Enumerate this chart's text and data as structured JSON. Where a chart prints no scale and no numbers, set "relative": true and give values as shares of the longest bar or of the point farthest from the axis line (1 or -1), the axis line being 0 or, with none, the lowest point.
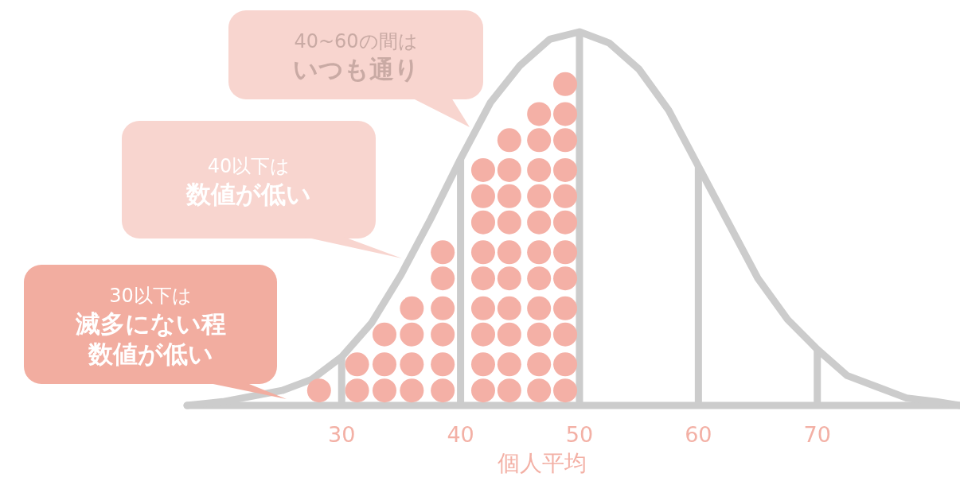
{
  "chart_data": {
    "type": "scatter",
    "relative": true,
    "xlim": [
      17,
      82
    ],
    "xticks": [
      30,
      40,
      50,
      60,
      70
    ],
    "xlabel": "個人平均",
    "series": [
      {
        "marker": "circle",
        "color": "#f4b0a6",
        "x": [
          28.1,
          31.3,
          31.3,
          33.6,
          33.6,
          33.6,
          35.9,
          35.9,
          35.9,
          35.9,
          38.5,
          38.5,
          38.5,
          38.5,
          38.5,
          38.5,
          41.9,
          41.9,
          41.9,
          41.9,
          41.9,
          41.9,
          41.9,
          41.9,
          41.9,
          44.1,
          44.1,
          44.1,
          44.1,
          44.1,
          44.1,
          44.1,
          44.1,
          44.1,
          44.1,
          46.6,
          46.6,
          46.6,
          46.6,
          46.6,
          46.6,
          46.6,
          46.6,
          46.6,
          46.6,
          46.6,
          48.8,
          48.8,
          48.8,
          48.8,
          48.8,
          48.8,
          48.8,
          48.8,
          48.8,
          48.8,
          48.8,
          48.8
        ],
        "values": [
          0.04,
          0.04,
          0.11,
          0.04,
          0.11,
          0.19,
          0.04,
          0.11,
          0.19,
          0.26,
          0.04,
          0.11,
          0.19,
          0.26,
          0.34,
          0.41,
          0.04,
          0.11,
          0.19,
          0.26,
          0.34,
          0.41,
          0.49,
          0.56,
          0.63,
          0.04,
          0.11,
          0.19,
          0.26,
          0.34,
          0.41,
          0.49,
          0.56,
          0.63,
          0.71,
          0.04,
          0.11,
          0.19,
          0.26,
          0.34,
          0.41,
          0.49,
          0.56,
          0.63,
          0.71,
          0.78,
          0.04,
          0.11,
          0.19,
          0.26,
          0.34,
          0.41,
          0.49,
          0.56,
          0.63,
          0.71,
          0.78,
          0.86
        ]
      },
      {
        "type": "line",
        "color": "#cccccc",
        "x": [
          17,
          20,
          25,
          27.5,
          30,
          32.5,
          35,
          37.5,
          40,
          42.5,
          45,
          47.5,
          50,
          52.5,
          55,
          57.5,
          60,
          62.5,
          65,
          67.5,
          70,
          72.5,
          75,
          77.5,
          80,
          82
        ],
        "values": [
          0,
          0.01,
          0.04,
          0.07,
          0.13,
          0.22,
          0.35,
          0.5,
          0.66,
          0.81,
          0.91,
          0.98,
          1,
          0.97,
          0.9,
          0.79,
          0.64,
          0.49,
          0.34,
          0.23,
          0.15,
          0.08,
          0.05,
          0.02,
          0.01,
          0
        ]
      }
    ],
    "ref_lines": [
      {
        "axis": "x",
        "value": 30,
        "color": "#cccccc"
      },
      {
        "axis": "x",
        "value": 40,
        "color": "#cccccc"
      },
      {
        "axis": "x",
        "value": 50,
        "color": "#cccccc"
      },
      {
        "axis": "x",
        "value": 60,
        "color": "#cccccc"
      },
      {
        "axis": "x",
        "value": 70,
        "color": "#cccccc"
      }
    ],
    "annotations": [
      "40~60の間は**いつも通り**",
      "40以下は**数値が低い**",
      "30以下は**滅多にない程数値が低い**"
    ]
  }
}
